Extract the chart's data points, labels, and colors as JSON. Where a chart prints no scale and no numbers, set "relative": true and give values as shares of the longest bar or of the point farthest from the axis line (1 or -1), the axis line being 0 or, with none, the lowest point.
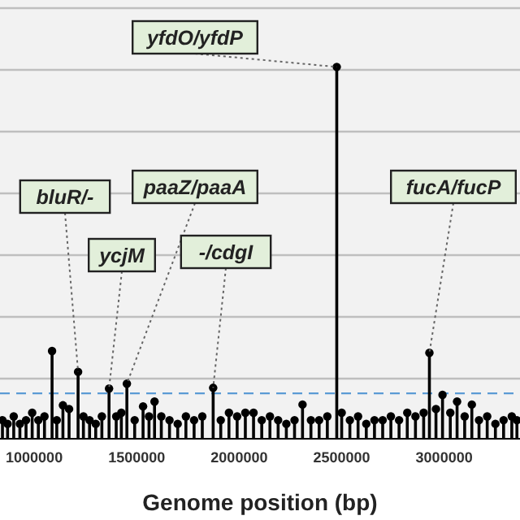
{
  "chart_data": {
    "type": "lollipop",
    "relative": true,
    "xlabel": "Genome position (bp)",
    "x": [
      845000,
      870000,
      900000,
      930000,
      960000,
      990000,
      1020000,
      1050000,
      1087000,
      1110000,
      1140000,
      1170000,
      1214000,
      1240000,
      1270000,
      1300000,
      1330000,
      1365000,
      1400000,
      1425000,
      1452000,
      1490000,
      1531000,
      1560000,
      1587000,
      1620000,
      1660000,
      1700000,
      1740000,
      1780000,
      1820000,
      1873000,
      1910000,
      1950000,
      1990000,
      2030000,
      2070000,
      2110000,
      2150000,
      2190000,
      2230000,
      2270000,
      2309000,
      2350000,
      2390000,
      2430000,
      2476000,
      2500000,
      2540000,
      2580000,
      2620000,
      2660000,
      2700000,
      2740000,
      2780000,
      2820000,
      2860000,
      2900000,
      2928000,
      2960000,
      2992000,
      3030000,
      3063000,
      3100000,
      3135000,
      3170000,
      3210000,
      3250000,
      3290000,
      3330000,
      3355000
    ],
    "values": [
      0.05,
      0.04,
      0.06,
      0.04,
      0.05,
      0.07,
      0.05,
      0.06,
      0.236,
      0.05,
      0.09,
      0.08,
      0.18,
      0.06,
      0.05,
      0.04,
      0.06,
      0.135,
      0.06,
      0.07,
      0.148,
      0.05,
      0.087,
      0.06,
      0.1,
      0.06,
      0.05,
      0.04,
      0.06,
      0.05,
      0.06,
      0.137,
      0.05,
      0.07,
      0.06,
      0.07,
      0.07,
      0.05,
      0.06,
      0.05,
      0.04,
      0.05,
      0.092,
      0.05,
      0.05,
      0.06,
      1,
      0.07,
      0.05,
      0.06,
      0.04,
      0.05,
      0.05,
      0.06,
      0.05,
      0.07,
      0.06,
      0.07,
      0.231,
      0.08,
      0.118,
      0.07,
      0.1,
      0.06,
      0.092,
      0.05,
      0.06,
      0.04,
      0.05,
      0.06,
      0.05
    ],
    "color": "#000000",
    "marker": "circle",
    "xlim": [
      833000,
      3370000
    ],
    "xticks": [
      1000000,
      1500000,
      2000000,
      2500000,
      3000000
    ],
    "grid": "y",
    "ref_lines": [
      {
        "axis": "y",
        "value": 0.122,
        "color": "#5b9bd5",
        "line_style": "dashed"
      }
    ],
    "annotations": [
      {
        "text": "yfdO/yfdP",
        "x": 2476000,
        "y": 1
      },
      {
        "text": "bluR/-",
        "x": 1214000,
        "y": 0.18
      },
      {
        "text": "paaZ/paaA",
        "x": 1452000,
        "y": 0.148
      },
      {
        "text": "ycjM",
        "x": 1365000,
        "y": 0.135
      },
      {
        "text": "-/cdgI",
        "x": 1873000,
        "y": 0.137
      },
      {
        "text": "fucA/fucP",
        "x": 2928000,
        "y": 0.231
      }
    ]
  }
}
